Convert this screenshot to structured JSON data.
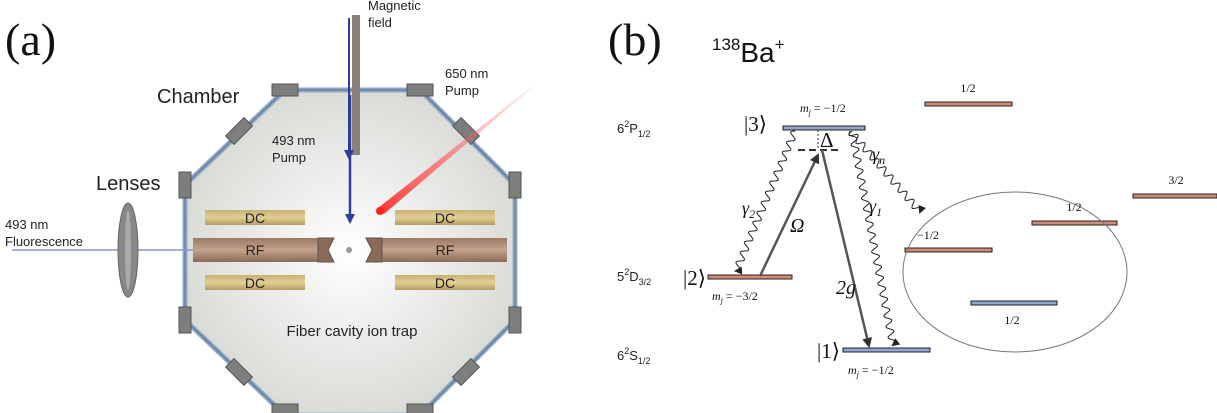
{
  "panel_a": {
    "label": "(a)",
    "magnetic_field": [
      "Magnetic",
      "field"
    ],
    "pump_650": [
      "650 nm",
      "Pump"
    ],
    "chamber": "Chamber",
    "pump_493": [
      "493 nm",
      "Pump"
    ],
    "lenses": "Lenses",
    "fluorescence": [
      "493 nm",
      "Fluorescence"
    ],
    "electrodes": {
      "dc": [
        "DC",
        "DC",
        "DC",
        "DC"
      ],
      "rf": [
        "RF",
        "RF"
      ]
    },
    "caption": "Fiber cavity ion trap"
  },
  "panel_b": {
    "label": "(b)",
    "ion": {
      "mass": "138",
      "element": "Ba",
      "charge": "+"
    },
    "levels": [
      {
        "n": "6",
        "mult": "2",
        "orbital": "P",
        "j": "1/2"
      },
      {
        "n": "5",
        "mult": "2",
        "orbital": "D",
        "j": "3/2"
      },
      {
        "n": "6",
        "mult": "2",
        "orbital": "S",
        "j": "1/2"
      }
    ],
    "kets": [
      "|3⟩",
      "|2⟩",
      "|1⟩"
    ],
    "mj_labels": [
      {
        "symbol": "m",
        "subscript": "j",
        "value": " = −1/2"
      },
      {
        "symbol": "m",
        "subscript": "j",
        "value": " = −3/2"
      },
      {
        "symbol": "m",
        "subscript": "j",
        "value": " = −1/2"
      }
    ],
    "detuning": "Δ",
    "rabi": "Ω",
    "coupling": "2g",
    "decays": [
      {
        "symbol": "γ",
        "subscript": "2"
      },
      {
        "symbol": "γ",
        "subscript": "n"
      },
      {
        "symbol": "γ",
        "subscript": "1"
      }
    ],
    "other_levels": [
      "1/2",
      "3/2",
      "1/2",
      "−1/2",
      "1/2"
    ]
  }
}
